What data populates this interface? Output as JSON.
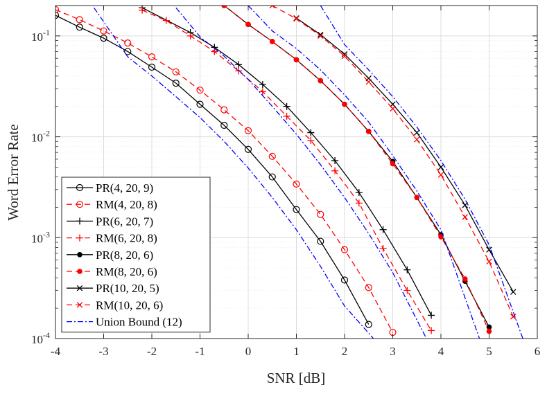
{
  "chart_data": {
    "type": "line",
    "title": "",
    "xlabel": "SNR [dB]",
    "ylabel": "Word Error Rate",
    "xlim": [
      -4,
      6
    ],
    "ylim": [
      0.0001,
      0.2
    ],
    "yscale": "log",
    "grid": true,
    "legend_position": "bottom-left",
    "xticks": [
      -4,
      -3,
      -2,
      -1,
      0,
      1,
      2,
      3,
      4,
      5,
      6
    ],
    "xtick_labels": [
      "-4",
      "-3",
      "-2",
      "-1",
      "0",
      "1",
      "2",
      "3",
      "4",
      "5",
      "6"
    ],
    "yticks": [
      0.0001,
      0.001,
      0.01,
      0.1
    ],
    "ytick_labels": [
      {
        "base": "10",
        "exp": "-4"
      },
      {
        "base": "10",
        "exp": "-3"
      },
      {
        "base": "10",
        "exp": "-2"
      },
      {
        "base": "10",
        "exp": "-1"
      }
    ],
    "series": [
      {
        "name": "PR(4, 20, 9)",
        "color": "#000000",
        "dash": "solid",
        "marker": "circle",
        "x": [
          -4,
          -3.5,
          -3,
          -2.5,
          -2,
          -1.5,
          -1,
          -0.5,
          0,
          0.5,
          1,
          1.5,
          2,
          2.5
        ],
        "y": [
          0.16,
          0.122,
          0.095,
          0.07,
          0.049,
          0.034,
          0.021,
          0.013,
          0.0075,
          0.004,
          0.0019,
          0.00092,
          0.00038,
          0.000138
        ]
      },
      {
        "name": "RM(4, 20, 8)",
        "color": "#ff0000",
        "dash": "dashed",
        "marker": "circle",
        "x": [
          -4,
          -3.5,
          -3,
          -2.5,
          -2,
          -1.5,
          -1,
          -0.5,
          0,
          0.5,
          1,
          1.5,
          2,
          2.5,
          3
        ],
        "y": [
          0.182,
          0.145,
          0.112,
          0.085,
          0.062,
          0.044,
          0.029,
          0.0185,
          0.0115,
          0.0064,
          0.0034,
          0.0017,
          0.00076,
          0.00032,
          0.000115
        ]
      },
      {
        "name": "PR(6, 20, 7)",
        "color": "#000000",
        "dash": "solid",
        "marker": "plus",
        "x": [
          -2.2,
          -1.2,
          -0.7,
          -0.2,
          0.3,
          0.8,
          1.3,
          1.8,
          2.3,
          2.8,
          3.3,
          3.8
        ],
        "y": [
          0.19,
          0.108,
          0.077,
          0.052,
          0.033,
          0.02,
          0.011,
          0.0058,
          0.0028,
          0.0012,
          0.00048,
          0.00017
        ]
      },
      {
        "name": "RM(6, 20, 8)",
        "color": "#ff0000",
        "dash": "dashed",
        "marker": "plus",
        "x": [
          -2.2,
          -1.7,
          -1.2,
          -0.7,
          -0.2,
          0.3,
          0.8,
          1.3,
          1.8,
          2.3,
          2.8,
          3.3,
          3.8
        ],
        "y": [
          0.18,
          0.142,
          0.1,
          0.07,
          0.045,
          0.028,
          0.016,
          0.0092,
          0.0046,
          0.0022,
          0.00078,
          0.0003,
          0.00012
        ]
      },
      {
        "name": "PR(8, 20, 6)",
        "color": "#000000",
        "dash": "solid",
        "marker": "dot",
        "x": [
          -0.5,
          0,
          0.5,
          1,
          1.5,
          2,
          2.5,
          3,
          3.5,
          4,
          4.5,
          5
        ],
        "y": [
          0.2,
          0.13,
          0.088,
          0.058,
          0.036,
          0.021,
          0.0113,
          0.0057,
          0.0025,
          0.00107,
          0.00037,
          0.00013
        ]
      },
      {
        "name": "RM(8, 20, 6)",
        "color": "#ff0000",
        "dash": "dashed",
        "marker": "dot",
        "x": [
          -0.5,
          0,
          0.5,
          1,
          1.5,
          2,
          2.5,
          3,
          3.5,
          4,
          4.5,
          5
        ],
        "y": [
          0.2,
          0.13,
          0.088,
          0.058,
          0.036,
          0.021,
          0.0113,
          0.0054,
          0.0025,
          0.00102,
          0.00039,
          0.000118
        ]
      },
      {
        "name": "PR(10, 20, 5)",
        "color": "#000000",
        "dash": "solid",
        "marker": "x",
        "x": [
          1,
          1.5,
          2,
          2.5,
          3,
          3.5,
          4,
          4.5,
          5,
          5.5
        ],
        "y": [
          0.15,
          0.103,
          0.066,
          0.038,
          0.021,
          0.011,
          0.005,
          0.0021,
          0.00076,
          0.00029
        ]
      },
      {
        "name": "RM(10, 20, 6)",
        "color": "#ff0000",
        "dash": "dashed",
        "marker": "x",
        "x": [
          0.5,
          1,
          1.5,
          2,
          2.5,
          3,
          3.5,
          4,
          4.5,
          5,
          5.5
        ],
        "y": [
          0.2,
          0.148,
          0.1,
          0.063,
          0.035,
          0.019,
          0.0094,
          0.0042,
          0.0016,
          0.00058,
          0.000165
        ]
      },
      {
        "name": "Union Bound (12)",
        "color": "#0000ff",
        "dash": "dashdot",
        "marker": "none",
        "segments": [
          {
            "x": [
              -3.2,
              -2.5,
              -2,
              -1.5,
              -1,
              -0.5,
              0,
              0.5,
              1,
              1.5,
              2,
              2.6
            ],
            "y": [
              0.19,
              0.062,
              0.04,
              0.025,
              0.0155,
              0.009,
              0.0049,
              0.0025,
              0.0012,
              0.00052,
              0.00021,
              0.0001
            ]
          },
          {
            "x": [
              -1.5,
              -1,
              -0.5,
              0,
              0.5,
              1,
              1.5,
              2,
              2.5,
              3,
              3.7
            ],
            "y": [
              0.19,
              0.098,
              0.063,
              0.037,
              0.02,
              0.0106,
              0.0053,
              0.0025,
              0.0011,
              0.00045,
              0.0001
            ]
          },
          {
            "x": [
              0,
              0.5,
              1,
              1.5,
              2,
              2.5,
              3,
              3.5,
              4,
              4.8
            ],
            "y": [
              0.2,
              0.112,
              0.075,
              0.046,
              0.026,
              0.014,
              0.0065,
              0.0029,
              0.0012,
              0.0001
            ]
          },
          {
            "x": [
              1.5,
              2,
              2.5,
              3,
              3.5,
              4,
              4.5,
              5,
              5.7
            ],
            "y": [
              0.2,
              0.082,
              0.046,
              0.025,
              0.0125,
              0.0058,
              0.0024,
              0.00085,
              0.0001
            ]
          }
        ]
      }
    ]
  }
}
